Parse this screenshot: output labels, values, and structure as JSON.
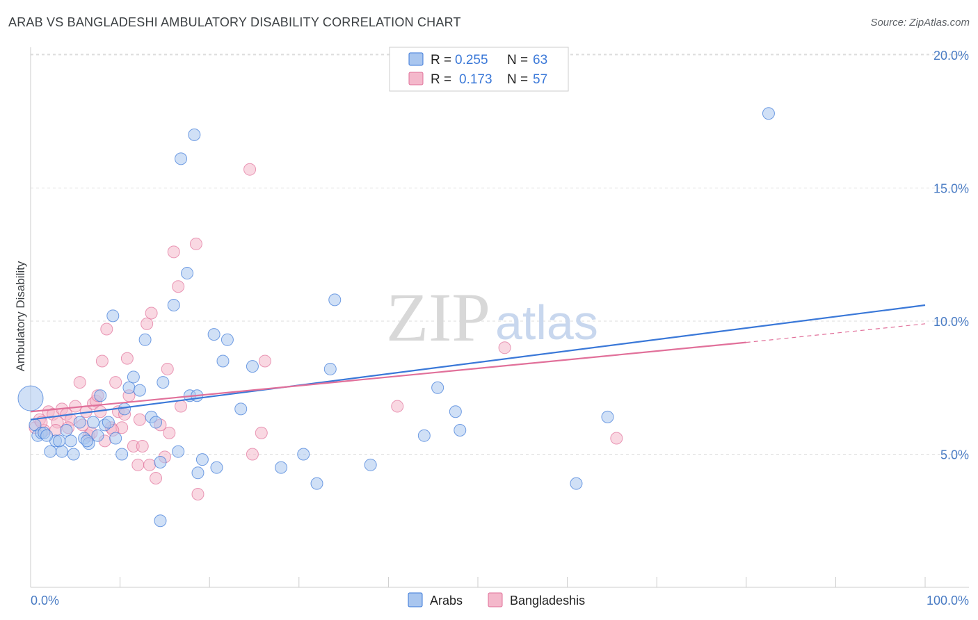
{
  "title": "ARAB VS BANGLADESHI AMBULATORY DISABILITY CORRELATION CHART",
  "source": "Source: ZipAtlas.com",
  "watermark": {
    "zip": "ZIP",
    "atlas": "atlas"
  },
  "colors": {
    "arabs": "#3a78d8",
    "arabs_fill": "#a9c6ef",
    "bangladeshis": "#e1709a",
    "bangladeshis_fill": "#f4b8cb",
    "axis_text": "#4a7cc4",
    "grid": "#dddddd"
  },
  "legend": {
    "arabs": {
      "r_label": "R =",
      "r_value": "0.255",
      "n_label": "N =",
      "n_value": "63"
    },
    "bangladeshis": {
      "r_label": "R =",
      "r_value": "0.173",
      "n_label": "N =",
      "n_value": "57"
    }
  },
  "chart_data": {
    "type": "scatter",
    "title": "ARAB VS BANGLADESHI AMBULATORY DISABILITY CORRELATION CHART",
    "xlabel": "",
    "ylabel": "Ambulatory Disability",
    "xlim": [
      0,
      100
    ],
    "ylim": [
      0,
      20
    ],
    "x_tick_labels": [
      "0.0%",
      "100.0%"
    ],
    "y_ticks": [
      {
        "value": 5,
        "label": "5.0%"
      },
      {
        "value": 10,
        "label": "10.0%"
      },
      {
        "value": 15,
        "label": "15.0%"
      },
      {
        "value": 20,
        "label": "20.0%"
      }
    ],
    "series": [
      {
        "name": "Arabs",
        "trend": {
          "x0": 0,
          "y0": 6.3,
          "x1": 100,
          "y1": 10.6
        },
        "points": [
          [
            0.0,
            7.1
          ],
          [
            0.5,
            6.1
          ],
          [
            0.8,
            5.7
          ],
          [
            1.2,
            5.8
          ],
          [
            1.5,
            5.8
          ],
          [
            2.2,
            5.1
          ],
          [
            2.8,
            5.5
          ],
          [
            3.5,
            5.1
          ],
          [
            4.0,
            5.9
          ],
          [
            4.5,
            5.5
          ],
          [
            4.8,
            5.0
          ],
          [
            5.5,
            6.2
          ],
          [
            6.0,
            5.6
          ],
          [
            6.5,
            5.4
          ],
          [
            7.0,
            6.2
          ],
          [
            7.5,
            5.7
          ],
          [
            7.8,
            7.2
          ],
          [
            8.3,
            6.1
          ],
          [
            8.7,
            6.2
          ],
          [
            9.2,
            10.2
          ],
          [
            9.5,
            5.6
          ],
          [
            10.2,
            5.0
          ],
          [
            10.5,
            6.7
          ],
          [
            11.0,
            7.5
          ],
          [
            11.5,
            7.9
          ],
          [
            12.2,
            7.4
          ],
          [
            12.8,
            9.3
          ],
          [
            13.5,
            6.4
          ],
          [
            14.0,
            6.2
          ],
          [
            14.5,
            4.7
          ],
          [
            14.8,
            7.7
          ],
          [
            14.5,
            2.5
          ],
          [
            16.0,
            10.6
          ],
          [
            16.5,
            5.1
          ],
          [
            16.8,
            16.1
          ],
          [
            17.5,
            11.8
          ],
          [
            17.8,
            7.2
          ],
          [
            18.3,
            17.0
          ],
          [
            18.7,
            4.3
          ],
          [
            18.6,
            7.2
          ],
          [
            19.2,
            4.8
          ],
          [
            20.5,
            9.5
          ],
          [
            20.8,
            4.5
          ],
          [
            21.5,
            8.5
          ],
          [
            22.0,
            9.3
          ],
          [
            23.5,
            6.7
          ],
          [
            24.8,
            8.3
          ],
          [
            28.0,
            4.5
          ],
          [
            30.5,
            5.0
          ],
          [
            32.0,
            3.9
          ],
          [
            33.5,
            8.2
          ],
          [
            34.0,
            10.8
          ],
          [
            38.0,
            4.6
          ],
          [
            44.0,
            5.7
          ],
          [
            45.5,
            7.5
          ],
          [
            47.5,
            6.6
          ],
          [
            48.0,
            5.9
          ],
          [
            61.0,
            3.9
          ],
          [
            64.5,
            6.4
          ],
          [
            82.5,
            17.8
          ],
          [
            1.8,
            5.7
          ],
          [
            3.2,
            5.5
          ],
          [
            6.3,
            5.5
          ]
        ]
      },
      {
        "name": "Bangladeshis",
        "trend": {
          "x0": 0,
          "y0": 6.6,
          "x1": 80,
          "y1": 9.2,
          "dash_x1": 100,
          "dash_y1": 9.9
        },
        "points": [
          [
            0.5,
            6.0
          ],
          [
            1.0,
            6.3
          ],
          [
            1.5,
            5.9
          ],
          [
            2.0,
            6.6
          ],
          [
            2.5,
            6.5
          ],
          [
            3.0,
            6.2
          ],
          [
            3.5,
            6.7
          ],
          [
            4.0,
            6.5
          ],
          [
            4.5,
            6.3
          ],
          [
            5.0,
            6.8
          ],
          [
            5.5,
            7.7
          ],
          [
            5.8,
            6.1
          ],
          [
            6.2,
            6.6
          ],
          [
            6.5,
            5.7
          ],
          [
            7.0,
            6.9
          ],
          [
            7.3,
            7.0
          ],
          [
            7.5,
            7.2
          ],
          [
            7.8,
            6.6
          ],
          [
            8.0,
            8.5
          ],
          [
            8.3,
            5.5
          ],
          [
            8.5,
            9.7
          ],
          [
            9.0,
            6.0
          ],
          [
            9.5,
            7.7
          ],
          [
            9.8,
            6.6
          ],
          [
            10.2,
            6.0
          ],
          [
            10.5,
            6.5
          ],
          [
            10.8,
            8.6
          ],
          [
            11.0,
            7.2
          ],
          [
            11.5,
            5.3
          ],
          [
            12.0,
            4.6
          ],
          [
            12.5,
            5.3
          ],
          [
            13.0,
            9.9
          ],
          [
            13.3,
            4.6
          ],
          [
            13.5,
            10.3
          ],
          [
            14.0,
            4.1
          ],
          [
            14.5,
            6.1
          ],
          [
            15.0,
            4.9
          ],
          [
            15.3,
            8.2
          ],
          [
            15.5,
            5.8
          ],
          [
            16.0,
            12.6
          ],
          [
            16.5,
            11.3
          ],
          [
            16.8,
            6.8
          ],
          [
            18.5,
            12.9
          ],
          [
            18.7,
            3.5
          ],
          [
            24.5,
            15.7
          ],
          [
            24.8,
            5.0
          ],
          [
            25.8,
            5.8
          ],
          [
            26.2,
            8.5
          ],
          [
            41.0,
            6.8
          ],
          [
            53.0,
            9.0
          ],
          [
            65.5,
            5.6
          ],
          [
            1.2,
            6.2
          ],
          [
            2.8,
            5.9
          ],
          [
            4.2,
            6.0
          ],
          [
            6.8,
            5.8
          ],
          [
            9.2,
            5.9
          ],
          [
            12.2,
            6.3
          ]
        ]
      }
    ]
  }
}
